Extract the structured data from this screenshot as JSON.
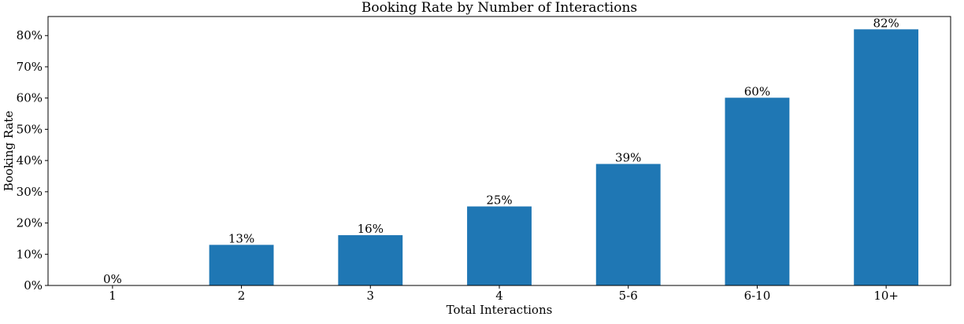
{
  "chart_data": {
    "type": "bar",
    "title": "Booking Rate by Number of Interactions",
    "xlabel": "Total Interactions",
    "ylabel": "Booking Rate",
    "categories": [
      "1",
      "2",
      "3",
      "4",
      "5-6",
      "6-10",
      "10+"
    ],
    "values": [
      0.0,
      13.0,
      16.1,
      25.3,
      38.9,
      60.1,
      82.0
    ],
    "data_labels": [
      "0%",
      "13%",
      "16%",
      "25%",
      "39%",
      "60%",
      "82%"
    ],
    "yticks": [
      0,
      10,
      20,
      30,
      40,
      50,
      60,
      70,
      80
    ],
    "ytick_labels": [
      "0%",
      "10%",
      "20%",
      "30%",
      "40%",
      "50%",
      "60%",
      "70%",
      "80%"
    ],
    "ylim": [
      0,
      86.1
    ],
    "grid": false,
    "bar_color": "#1f77b4"
  }
}
